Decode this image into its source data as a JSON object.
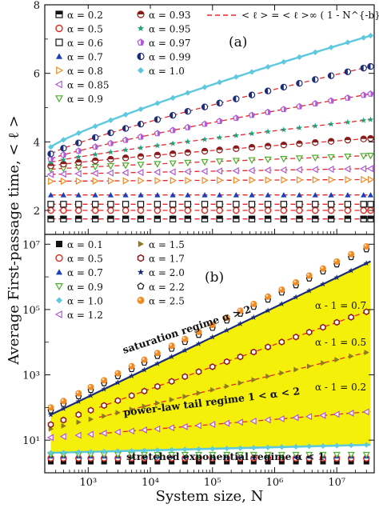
{
  "figure": {
    "ylabel": "Average First-passage time, < ℓ >",
    "xlabel": "System size, N",
    "colors": {
      "black": "#111111",
      "red": "#e0261c",
      "green": "#4caf2a",
      "blue": "#1f3fb8",
      "orange": "#f08a24",
      "purple": "#b05ad6",
      "cyan": "#5ec8df",
      "darkred": "#8b1a1a",
      "teal": "#1aa37a",
      "fit": "#e8262a",
      "yellow": "#f5f00a",
      "olive": "#8a7a22",
      "navy": "#1c2c78"
    }
  },
  "chart_data": [
    {
      "type": "scatter",
      "panel_label": "(a)",
      "xscale": "log",
      "xlim": [
        200,
        40000000
      ],
      "ylim": [
        1.3,
        8
      ],
      "yticks": [
        "2",
        "4",
        "6",
        "8"
      ],
      "x": [
        250,
        300,
        400,
        500,
        700,
        1000,
        1300,
        1700,
        2300,
        3000,
        4000,
        5300,
        7000,
        9500,
        13000,
        17000,
        23000,
        31000,
        40000,
        55000,
        75000,
        100000,
        130000,
        180000,
        240000,
        320000,
        430000,
        580000,
        780000,
        1000000,
        1400000,
        1900000,
        2500000,
        3400000,
        4500000,
        6000000,
        8100000,
        11000000,
        15000000,
        20000000,
        27000000,
        35000000
      ],
      "legend": [
        {
          "label": "α = 0.2",
          "marker": "halfsquare",
          "color": "black"
        },
        {
          "label": "α = 0.5",
          "marker": "circle-open",
          "color": "red"
        },
        {
          "label": "α = 0.6",
          "marker": "square-open",
          "color": "black"
        },
        {
          "label": "α = 0.7",
          "marker": "triangle-up",
          "color": "blue"
        },
        {
          "label": "α = 0.8",
          "marker": "triangle-right-open",
          "color": "orange"
        },
        {
          "label": "α = 0.85",
          "marker": "triangle-left-open",
          "color": "purple"
        },
        {
          "label": "α = 0.9",
          "marker": "triangle-down-open",
          "color": "green"
        },
        {
          "label": "α = 0.93",
          "marker": "halfcircle",
          "color": "darkred"
        },
        {
          "label": "α = 0.95",
          "marker": "star",
          "color": "teal"
        },
        {
          "label": "α = 0.97",
          "marker": "pentagon-half",
          "color": "purple"
        },
        {
          "label": "α = 0.99",
          "marker": "halfcircle-v",
          "color": "navy"
        },
        {
          "label": "α = 1.0",
          "marker": "diamond",
          "color": "cyan"
        }
      ],
      "fit_legend": "< ℓ > = < ℓ >∞ ( 1 - N^{-b}/c )",
      "series": [
        {
          "alpha": "0.2",
          "y_start": 1.75,
          "y_end": 1.75
        },
        {
          "alpha": "0.5",
          "y_start": 2.0,
          "y_end": 2.0
        },
        {
          "alpha": "0.6",
          "y_start": 2.18,
          "y_end": 2.18
        },
        {
          "alpha": "0.7",
          "y_start": 2.45,
          "y_end": 2.45
        },
        {
          "alpha": "0.8",
          "y_start": 2.85,
          "y_end": 2.9
        },
        {
          "alpha": "0.85",
          "y_start": 3.05,
          "y_end": 3.22
        },
        {
          "alpha": "0.9",
          "y_start": 3.2,
          "y_end": 3.6
        },
        {
          "alpha": "0.93",
          "y_start": 3.3,
          "y_end": 4.1
        },
        {
          "alpha": "0.95",
          "y_start": 3.4,
          "y_end": 4.65
        },
        {
          "alpha": "0.97",
          "y_start": 3.5,
          "y_end": 5.4
        },
        {
          "alpha": "0.99",
          "y_start": 3.65,
          "y_end": 6.2
        },
        {
          "alpha": "1.0",
          "y_start": 3.85,
          "y_end": 7.1
        }
      ]
    },
    {
      "type": "scatter",
      "panel_label": "(b)",
      "xscale": "log",
      "yscale": "log",
      "xlim": [
        200,
        40000000
      ],
      "ylim": [
        1,
        20000000
      ],
      "xticks": [
        "10³",
        "10⁴",
        "10⁵",
        "10⁶",
        "10⁷"
      ],
      "yticks": [
        "10¹",
        "10³",
        "10⁵",
        "10⁷"
      ],
      "legend": [
        {
          "label": "α = 0.1",
          "marker": "square",
          "color": "black"
        },
        {
          "label": "α = 0.5",
          "marker": "circle-open",
          "color": "red"
        },
        {
          "label": "α = 0.7",
          "marker": "triangle-up",
          "color": "blue"
        },
        {
          "label": "α = 0.9",
          "marker": "triangle-down-open",
          "color": "green"
        },
        {
          "label": "α = 1.0",
          "marker": "diamond",
          "color": "cyan"
        },
        {
          "label": "α = 1.2",
          "marker": "triangle-left-open",
          "color": "purple"
        },
        {
          "label": "α = 1.5",
          "marker": "triangle-right",
          "color": "olive"
        },
        {
          "label": "α = 1.7",
          "marker": "hexagon-open",
          "color": "darkred"
        },
        {
          "label": "α = 2.0",
          "marker": "star",
          "color": "navy"
        },
        {
          "label": "α = 2.2",
          "marker": "pentagon-open",
          "color": "black"
        },
        {
          "label": "α = 2.5",
          "marker": "circle-orange",
          "color": "orange"
        }
      ],
      "annotations": [
        {
          "text": "saturation regime α > 2"
        },
        {
          "text": "α - 1 = 0.7"
        },
        {
          "text": "α - 1 = 0.5"
        },
        {
          "text": "power-law tail regime 1 < α < 2"
        },
        {
          "text": "α - 1 = 0.2"
        },
        {
          "text": "stretched exponential regime α < 1"
        }
      ],
      "series": [
        {
          "alpha": "0.1",
          "y_start": 2.2,
          "y_end": 2.2
        },
        {
          "alpha": "0.5",
          "y_start": 2.8,
          "y_end": 2.8
        },
        {
          "alpha": "0.7",
          "y_start": 3.2,
          "y_end": 3.2
        },
        {
          "alpha": "0.9",
          "y_start": 3.6,
          "y_end": 3.6
        },
        {
          "alpha": "1.0",
          "y_start": 4.1,
          "y_end": 7.2
        },
        {
          "alpha": "1.2",
          "y_start": 12,
          "y_end": 75
        },
        {
          "alpha": "1.5",
          "y_start": 22,
          "y_end": 5200
        },
        {
          "alpha": "1.7",
          "y_start": 30,
          "y_end": 95000
        },
        {
          "alpha": "2.0",
          "y_start": 60,
          "y_end": 3000000
        },
        {
          "alpha": "2.2",
          "y_start": 80,
          "y_end": 8000000
        },
        {
          "alpha": "2.5",
          "y_start": 100,
          "y_end": 10000000
        }
      ]
    }
  ]
}
